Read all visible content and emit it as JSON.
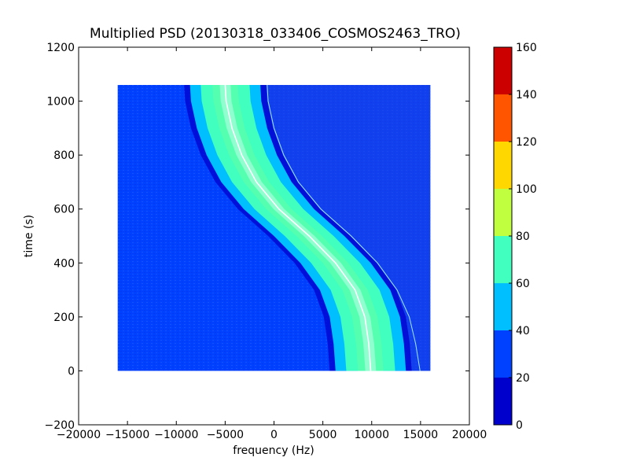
{
  "chart_data": {
    "type": "heatmap",
    "title": "Multiplied PSD (20130318_033406_COSMOS2463_TRO)",
    "xlabel": "frequency (Hz)",
    "ylabel": "time (s)",
    "xlim": [
      -20000,
      20000
    ],
    "ylim": [
      -200,
      1200
    ],
    "xticks": [
      -20000,
      -15000,
      -10000,
      -5000,
      0,
      5000,
      10000,
      15000,
      20000
    ],
    "xtick_labels": [
      "−20000",
      "−15000",
      "−10000",
      "−5000",
      "0",
      "5000",
      "10000",
      "15000",
      "20000"
    ],
    "yticks": [
      -200,
      0,
      200,
      400,
      600,
      800,
      1000,
      1200
    ],
    "ytick_labels": [
      "−200",
      "0",
      "200",
      "400",
      "600",
      "800",
      "1000",
      "1200"
    ],
    "data_extent": {
      "x": [
        -16000,
        16000
      ],
      "y": [
        0,
        1060
      ]
    },
    "background_level": 20,
    "band": {
      "description_level_center": 75,
      "centerline": [
        {
          "time": 1060,
          "frequency": -5000
        },
        {
          "time": 1000,
          "frequency": -4900
        },
        {
          "time": 900,
          "frequency": -4300
        },
        {
          "time": 800,
          "frequency": -3300
        },
        {
          "time": 700,
          "frequency": -1800
        },
        {
          "time": 600,
          "frequency": 500
        },
        {
          "time": 500,
          "frequency": 3600
        },
        {
          "time": 400,
          "frequency": 6300
        },
        {
          "time": 300,
          "frequency": 8300
        },
        {
          "time": 200,
          "frequency": 9300
        },
        {
          "time": 100,
          "frequency": 9700
        },
        {
          "time": 0,
          "frequency": 9900
        }
      ]
    },
    "colorbar": {
      "levels": [
        0,
        20,
        40,
        60,
        80,
        100,
        120,
        140,
        160
      ],
      "tick_labels": [
        "0",
        "20",
        "40",
        "60",
        "80",
        "100",
        "120",
        "140",
        "160"
      ],
      "colors": [
        "#0000cd",
        "#0040ff",
        "#00bfff",
        "#40ffbf",
        "#bfff40",
        "#ffd700",
        "#ff5500",
        "#cd0000"
      ]
    }
  }
}
